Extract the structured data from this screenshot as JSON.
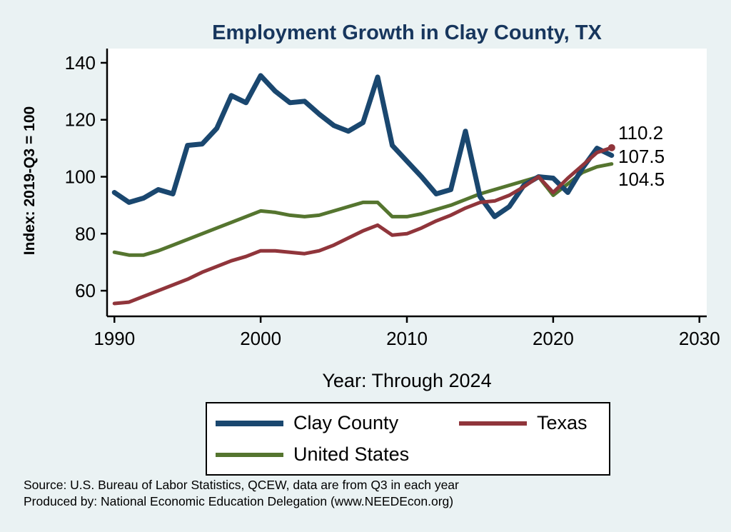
{
  "chart_data": {
    "type": "line",
    "title": "Employment Growth in Clay County, TX",
    "xlabel": "Year: Through 2024",
    "ylabel": "Index: 2019-Q3 = 100",
    "xlim": [
      1989.5,
      2030.5
    ],
    "ylim": [
      51,
      145
    ],
    "xticks": [
      "1990",
      "2000",
      "2010",
      "2020",
      "2030"
    ],
    "yticks": [
      "60",
      "80",
      "100",
      "120",
      "140"
    ],
    "grid": false,
    "legend_position": "bottom",
    "background_color": "#eaf2f3",
    "plot_background_color": "#ffffff",
    "title_color": "#17365d",
    "x": [
      1990,
      1991,
      1992,
      1993,
      1994,
      1995,
      1996,
      1997,
      1998,
      1999,
      2000,
      2001,
      2002,
      2003,
      2004,
      2005,
      2006,
      2007,
      2008,
      2009,
      2010,
      2011,
      2012,
      2013,
      2014,
      2015,
      2016,
      2017,
      2018,
      2019,
      2020,
      2021,
      2022,
      2023,
      2024
    ],
    "series": [
      {
        "name": "Clay County",
        "color": "#1a476f",
        "width": 7,
        "end_label": "107.5",
        "end_dot": false,
        "values": [
          94.5,
          91,
          92.5,
          95.5,
          94,
          111,
          111.5,
          117,
          128.5,
          126,
          135.5,
          130,
          126,
          126.5,
          122,
          118,
          116,
          119,
          135,
          111,
          105.5,
          100,
          94,
          95.5,
          116,
          93,
          86,
          89.5,
          97,
          100,
          99.5,
          94.5,
          103,
          110,
          107.5
        ]
      },
      {
        "name": "Texas",
        "color": "#90353b",
        "width": 5,
        "end_label": "110.2",
        "end_dot": true,
        "values": [
          55.5,
          56,
          58,
          60,
          62,
          64,
          66.5,
          68.5,
          70.5,
          72,
          74,
          74,
          73.5,
          73,
          74,
          76,
          78.5,
          81,
          83,
          79.5,
          80,
          82,
          84.5,
          86.5,
          89,
          91,
          91.5,
          93.5,
          96.5,
          100,
          94.5,
          99.5,
          104,
          108.5,
          110.2
        ]
      },
      {
        "name": "United States",
        "color": "#55752f",
        "width": 5,
        "end_label": "104.5",
        "end_dot": false,
        "values": [
          73.5,
          72.5,
          72.5,
          74,
          76,
          78,
          80,
          82,
          84,
          86,
          88,
          87.5,
          86.5,
          86,
          86.5,
          88,
          89.5,
          91,
          91,
          86,
          86,
          87,
          88.5,
          90,
          92,
          94,
          95.5,
          97,
          98.5,
          100,
          93.5,
          97.5,
          101.5,
          103.5,
          104.5
        ]
      }
    ]
  },
  "notes": {
    "source": "Source: U.S. Bureau of Labor Statistics, QCEW, data are from Q3 in each year",
    "produced_by": "Produced by: National Economic Education Delegation (www.NEEDEcon.org)"
  }
}
